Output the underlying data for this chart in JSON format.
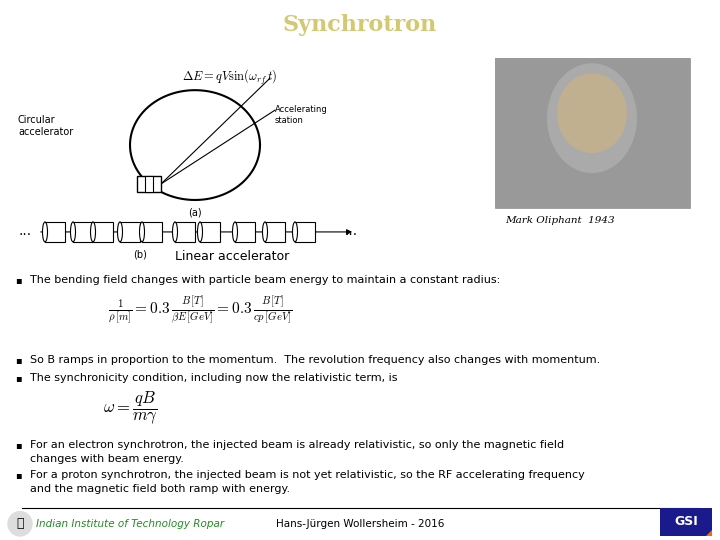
{
  "title": "Synchrotron",
  "title_bg_color": "#1874E8",
  "title_text_color": "#D4C870",
  "slide_bg_color": "#FFFFFF",
  "footer_line_color": "#000000",
  "footer_left": "Indian Institute of Technology Ropar",
  "footer_center": "Hans-Jürgen Wollersheim - 2016",
  "footer_left_color": "#228B22",
  "oliphant_caption": "Mark Oliphant  1943",
  "bullet1": "The bending field changes with particle beam energy to maintain a constant radius:",
  "bullet2": "So B ramps in proportion to the momentum.  The revolution frequency also changes with momentum.",
  "bullet3": "The synchronicity condition, including now the relativistic term, is",
  "bullet4a": "For an electron synchrotron, the injected beam is already relativistic, so only the magnetic field",
  "bullet4b": "changes with beam energy.",
  "bullet5a": "For a proton synchrotron, the injected beam is not yet relativistic, so the RF accelerating frequency",
  "bullet5b": "and the magnetic field both ramp with energy."
}
